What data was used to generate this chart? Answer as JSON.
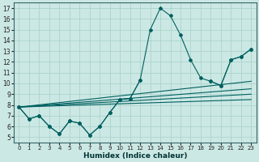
{
  "xlabel": "Humidex (Indice chaleur)",
  "bg_color": "#cce8e4",
  "grid_color": "#aad4cc",
  "line_color": "#006060",
  "xlim": [
    -0.5,
    23.5
  ],
  "ylim": [
    4.5,
    17.5
  ],
  "xticks": [
    0,
    1,
    2,
    3,
    4,
    5,
    6,
    7,
    8,
    9,
    10,
    11,
    12,
    13,
    14,
    15,
    16,
    17,
    18,
    19,
    20,
    21,
    22,
    23
  ],
  "yticks": [
    5,
    6,
    7,
    8,
    9,
    10,
    11,
    12,
    13,
    14,
    15,
    16,
    17
  ],
  "main_line_x": [
    0,
    1,
    2,
    3,
    4,
    5,
    6,
    7,
    8,
    9,
    10,
    11,
    12,
    13,
    14,
    15,
    16,
    17,
    18,
    19,
    20,
    21,
    22,
    23
  ],
  "main_line_y": [
    7.8,
    6.7,
    7.0,
    6.0,
    5.3,
    6.5,
    6.3,
    5.2,
    6.0,
    7.3,
    8.5,
    8.6,
    10.3,
    15.0,
    17.0,
    16.3,
    14.5,
    12.2,
    10.5,
    10.2,
    9.8,
    12.2,
    12.5,
    13.2
  ],
  "line2_segments": [
    {
      "x": [
        0,
        1,
        2,
        3,
        4,
        5,
        6,
        7,
        8,
        9,
        10,
        11,
        12
      ],
      "y": [
        7.8,
        6.7,
        7.0,
        6.0,
        5.3,
        6.5,
        6.3,
        5.2,
        6.0,
        7.3,
        8.5,
        8.6,
        10.3
      ]
    },
    {
      "x": [
        19,
        20,
        21,
        22,
        23
      ],
      "y": [
        10.2,
        9.8,
        12.2,
        12.5,
        13.2
      ]
    }
  ],
  "straight_lines": [
    {
      "x": [
        0,
        23
      ],
      "y": [
        7.8,
        8.5
      ]
    },
    {
      "x": [
        0,
        23
      ],
      "y": [
        7.8,
        9.0
      ]
    },
    {
      "x": [
        0,
        23
      ],
      "y": [
        7.8,
        9.5
      ]
    },
    {
      "x": [
        0,
        23
      ],
      "y": [
        7.8,
        10.2
      ]
    }
  ]
}
